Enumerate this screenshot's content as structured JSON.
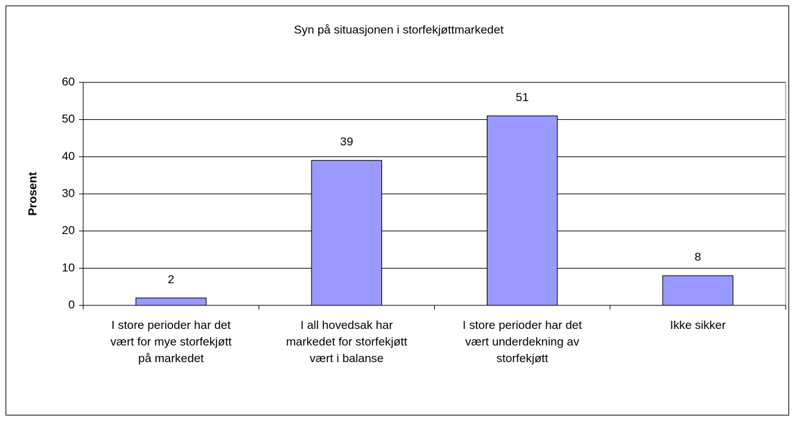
{
  "chart_data": {
    "type": "bar",
    "title": "Syn på situasjonen i storfekjøttmarkedet",
    "y_label": "Prosent",
    "categories": [
      "I store perioder har det vært for mye storfekjøtt på markedet",
      "I all hovedsak har markedet for storfekjøtt vært i balanse",
      "I store perioder har det vært underdekning av storfekjøtt",
      "Ikke sikker"
    ],
    "values": [
      2,
      39,
      51,
      8
    ],
    "color": "#9999ff",
    "ylim": [
      0,
      60
    ],
    "yticks": [
      0,
      10,
      20,
      30,
      40,
      50,
      60
    ],
    "grid": true
  }
}
